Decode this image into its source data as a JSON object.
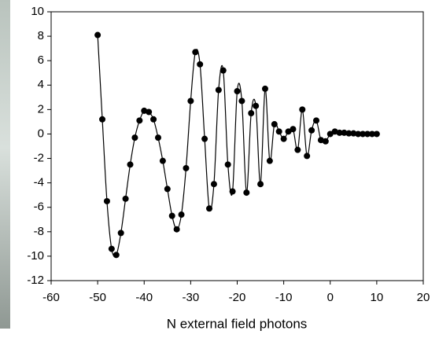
{
  "chart_data": {
    "type": "line",
    "x_label": "N external field photons",
    "x": [
      -50,
      -49,
      -48,
      -47,
      -46,
      -45,
      -44,
      -43,
      -42,
      -41,
      -40,
      -39,
      -38,
      -37,
      -36,
      -35,
      -34,
      -33,
      -32,
      -31,
      -30,
      -29,
      -28,
      -27,
      -26,
      -25,
      -24,
      -23,
      -22,
      -21,
      -20,
      -19,
      -18,
      -17,
      -16,
      -15,
      -14,
      -13,
      -12,
      -11,
      -10,
      -9,
      -8,
      -7,
      -6,
      -5,
      -4,
      -3,
      -2,
      -1,
      0,
      1,
      2,
      3,
      4,
      5,
      6,
      7,
      8,
      9,
      10
    ],
    "series": [
      {
        "color": "#000000",
        "values": [
          8.1,
          1.2,
          -5.5,
          -9.4,
          -9.9,
          -8.1,
          -5.3,
          -2.5,
          -0.3,
          1.1,
          1.9,
          1.8,
          1.2,
          -0.3,
          -2.2,
          -4.5,
          -6.7,
          -7.8,
          -6.6,
          -2.8,
          2.7,
          6.7,
          5.7,
          -0.4,
          -6.1,
          -4.1,
          3.6,
          5.2,
          -2.5,
          -4.7,
          3.5,
          2.7,
          -4.8,
          1.7,
          2.3,
          -4.1,
          3.7,
          -2.2,
          0.8,
          0.2,
          -0.4,
          0.2,
          0.4,
          -1.3,
          2.0,
          -1.8,
          0.3,
          1.1,
          -0.5,
          -0.6,
          0.0,
          0.2,
          0.1,
          0.1,
          0.05,
          0.05,
          0,
          0,
          0,
          0,
          0
        ]
      }
    ],
    "xlim": [
      -60,
      20
    ],
    "xticks": [
      -60,
      -50,
      -40,
      -30,
      -20,
      -10,
      0,
      10,
      20
    ],
    "ylim": [
      -12,
      10
    ],
    "yticks": [
      -12,
      -10,
      -8,
      -6,
      -4,
      -2,
      0,
      2,
      4,
      6,
      8,
      10
    ],
    "markers": true,
    "smooth": true
  }
}
